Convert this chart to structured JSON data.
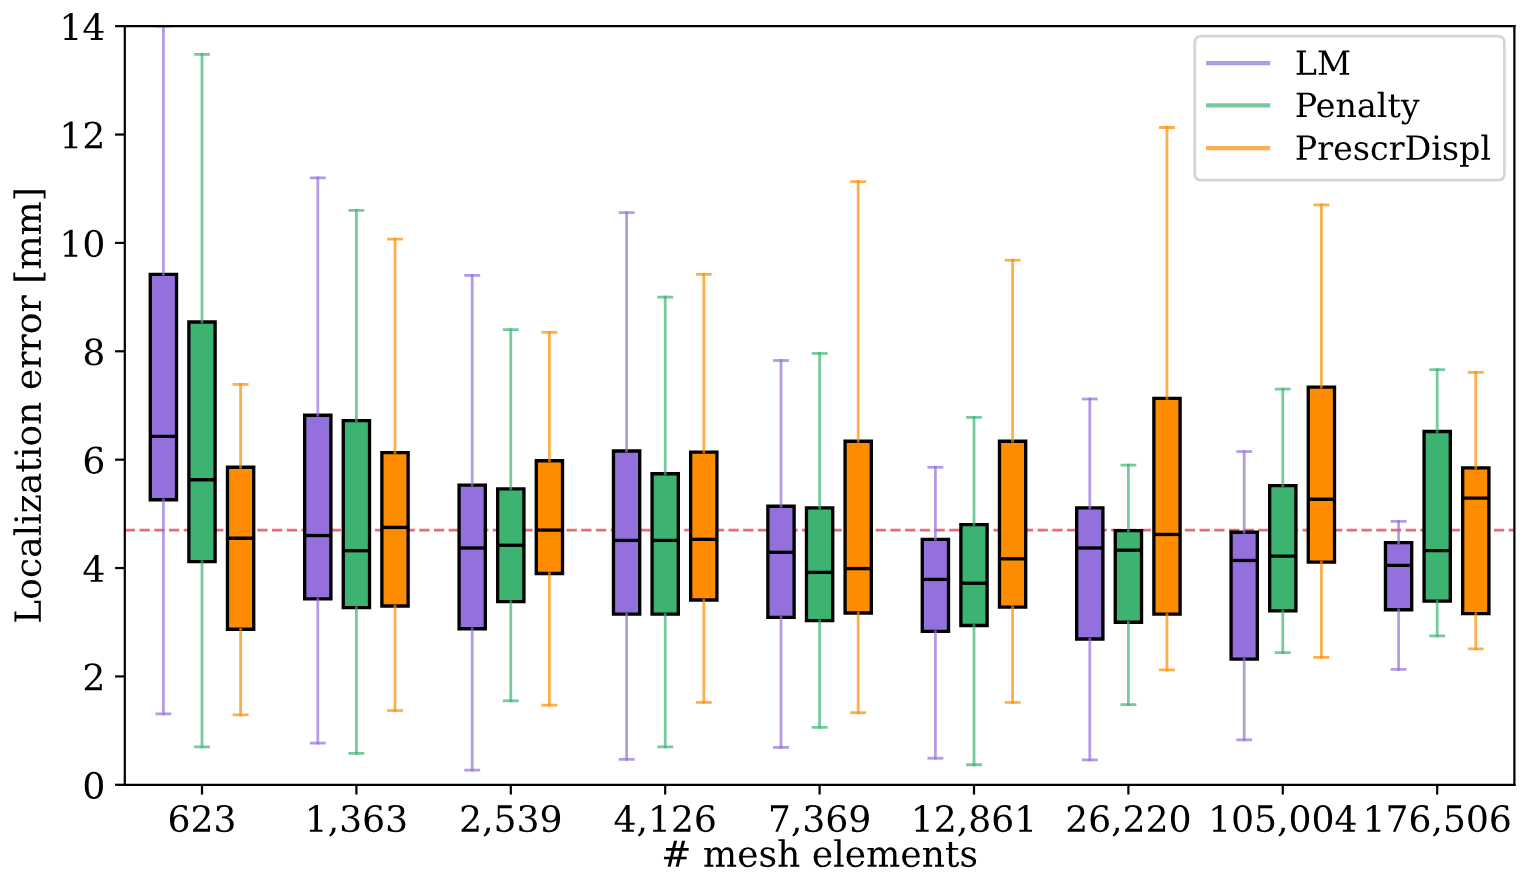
{
  "chart_data": {
    "type": "box",
    "xlabel": "# mesh elements",
    "ylabel": "Localization error [mm]",
    "categories": [
      "623",
      "1,363",
      "2,539",
      "4,126",
      "7,369",
      "12,861",
      "26,220",
      "105,004",
      "176,506"
    ],
    "ylim": [
      0,
      14
    ],
    "yticks": [
      0,
      2,
      4,
      6,
      8,
      10,
      12,
      14
    ],
    "grid": false,
    "legend": "top right",
    "ref_lines": [
      {
        "axis": "y",
        "value": 4.7,
        "color": "#e8596b",
        "line_style": "dashed"
      }
    ],
    "series": [
      {
        "name": "LM",
        "color": "#9370db",
        "boxes": [
          {
            "low": 1.31,
            "q1": 5.26,
            "median": 6.43,
            "q3": 9.42,
            "high": 14
          },
          {
            "low": 0.77,
            "q1": 3.43,
            "median": 4.6,
            "q3": 6.82,
            "high": 11.2
          },
          {
            "low": 0.27,
            "q1": 2.88,
            "median": 4.37,
            "q3": 5.53,
            "high": 9.4
          },
          {
            "low": 0.47,
            "q1": 3.15,
            "median": 4.51,
            "q3": 6.16,
            "high": 10.56
          },
          {
            "low": 0.69,
            "q1": 3.09,
            "median": 4.29,
            "q3": 5.14,
            "high": 7.83
          },
          {
            "low": 0.49,
            "q1": 2.83,
            "median": 3.79,
            "q3": 4.53,
            "high": 5.86
          },
          {
            "low": 0.46,
            "q1": 2.69,
            "median": 4.37,
            "q3": 5.11,
            "high": 7.12
          },
          {
            "low": 0.83,
            "q1": 2.32,
            "median": 4.14,
            "q3": 4.66,
            "high": 6.15
          },
          {
            "low": 2.13,
            "q1": 3.23,
            "median": 4.05,
            "q3": 4.47,
            "high": 4.86
          }
        ]
      },
      {
        "name": "Penalty",
        "color": "#3cb371",
        "boxes": [
          {
            "low": 0.7,
            "q1": 4.12,
            "median": 5.63,
            "q3": 8.54,
            "high": 13.48
          },
          {
            "low": 0.58,
            "q1": 3.27,
            "median": 4.32,
            "q3": 6.72,
            "high": 10.6
          },
          {
            "low": 1.55,
            "q1": 3.38,
            "median": 4.42,
            "q3": 5.46,
            "high": 8.4
          },
          {
            "low": 0.7,
            "q1": 3.15,
            "median": 4.51,
            "q3": 5.74,
            "high": 9.0
          },
          {
            "low": 1.06,
            "q1": 3.03,
            "median": 3.92,
            "q3": 5.11,
            "high": 7.96
          },
          {
            "low": 0.37,
            "q1": 2.94,
            "median": 3.72,
            "q3": 4.8,
            "high": 6.78
          },
          {
            "low": 1.48,
            "q1": 3.0,
            "median": 4.33,
            "q3": 4.69,
            "high": 5.9
          },
          {
            "low": 2.44,
            "q1": 3.21,
            "median": 4.22,
            "q3": 5.52,
            "high": 7.3
          },
          {
            "low": 2.75,
            "q1": 3.39,
            "median": 4.32,
            "q3": 6.52,
            "high": 7.66
          }
        ]
      },
      {
        "name": "PrescrDispl",
        "color": "#ff8c00",
        "boxes": [
          {
            "low": 1.29,
            "q1": 2.87,
            "median": 4.55,
            "q3": 5.86,
            "high": 7.39
          },
          {
            "low": 1.37,
            "q1": 3.3,
            "median": 4.75,
            "q3": 6.13,
            "high": 10.07
          },
          {
            "low": 1.47,
            "q1": 3.9,
            "median": 4.7,
            "q3": 5.98,
            "high": 8.35
          },
          {
            "low": 1.52,
            "q1": 3.41,
            "median": 4.53,
            "q3": 6.14,
            "high": 9.42
          },
          {
            "low": 1.33,
            "q1": 3.17,
            "median": 3.99,
            "q3": 6.34,
            "high": 11.13
          },
          {
            "low": 1.52,
            "q1": 3.28,
            "median": 4.17,
            "q3": 6.34,
            "high": 9.68
          },
          {
            "low": 2.12,
            "q1": 3.15,
            "median": 4.62,
            "q3": 7.13,
            "high": 12.13
          },
          {
            "low": 2.35,
            "q1": 4.11,
            "median": 5.27,
            "q3": 7.34,
            "high": 10.7
          },
          {
            "low": 2.51,
            "q1": 3.16,
            "median": 5.29,
            "q3": 5.85,
            "high": 7.61
          }
        ]
      }
    ]
  }
}
